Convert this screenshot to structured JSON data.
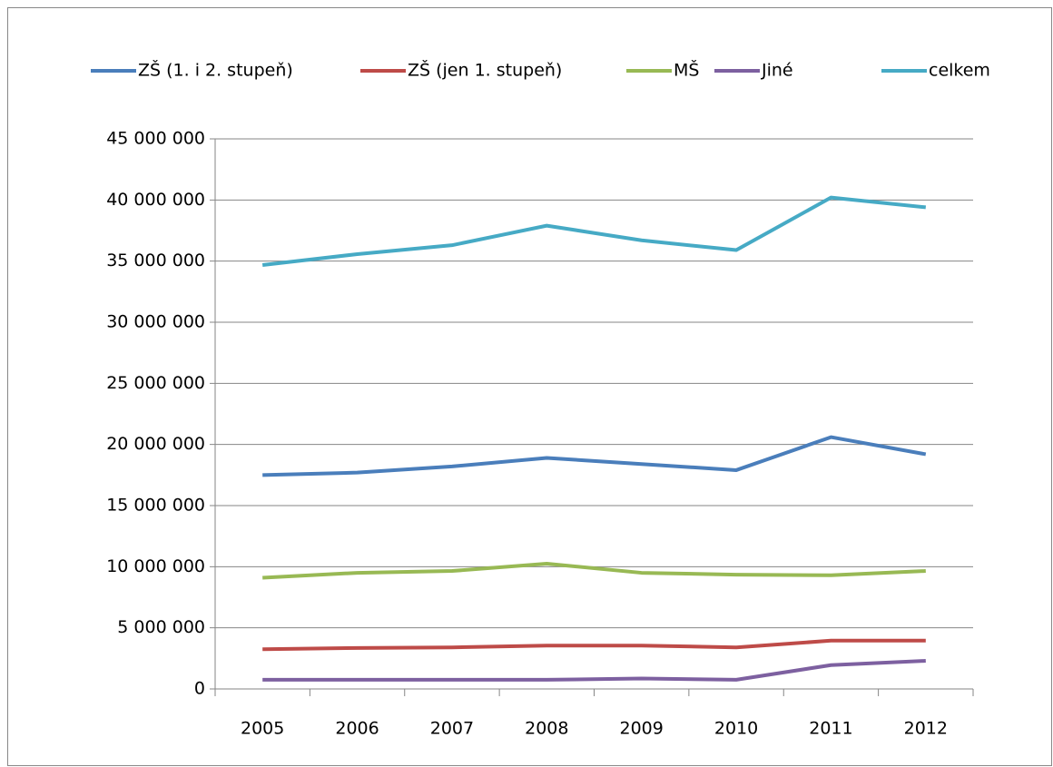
{
  "chart_data": {
    "type": "line",
    "categories": [
      "2005",
      "2006",
      "2007",
      "2008",
      "2009",
      "2010",
      "2011",
      "2012"
    ],
    "series": [
      {
        "name": "ZŠ (1. i 2. stupeň)",
        "color": "#4a7ebb",
        "values": [
          17500000,
          17700000,
          18200000,
          18900000,
          18400000,
          17900000,
          20600000,
          19200000
        ]
      },
      {
        "name": "ZŠ (jen 1. stupeň)",
        "color": "#be4b48",
        "values": [
          3250000,
          3350000,
          3400000,
          3550000,
          3550000,
          3400000,
          3950000,
          3950000
        ]
      },
      {
        "name": "MŠ",
        "color": "#98b954",
        "values": [
          9100000,
          9500000,
          9650000,
          10250000,
          9500000,
          9350000,
          9300000,
          9650000
        ]
      },
      {
        "name": "Jiné",
        "color": "#7d60a0",
        "values": [
          750000,
          750000,
          750000,
          750000,
          850000,
          750000,
          1950000,
          2300000
        ]
      },
      {
        "name": "celkem",
        "color": "#46aac5",
        "values": [
          34680000,
          35570000,
          36300000,
          37900000,
          36700000,
          35900000,
          40200000,
          39400000
        ]
      }
    ],
    "ylim": [
      0,
      45000000
    ],
    "yticks": [
      {
        "value": 0,
        "label": "0"
      },
      {
        "value": 5000000,
        "label": "5 000 000"
      },
      {
        "value": 10000000,
        "label": "10 000 000"
      },
      {
        "value": 15000000,
        "label": "15 000 000"
      },
      {
        "value": 20000000,
        "label": "20 000 000"
      },
      {
        "value": 25000000,
        "label": "25 000 000"
      },
      {
        "value": 30000000,
        "label": "30 000 000"
      },
      {
        "value": 35000000,
        "label": "35 000 000"
      },
      {
        "value": 40000000,
        "label": "40 000 000"
      },
      {
        "value": 45000000,
        "label": "45 000 000"
      }
    ],
    "grid": true,
    "legend": "top"
  }
}
